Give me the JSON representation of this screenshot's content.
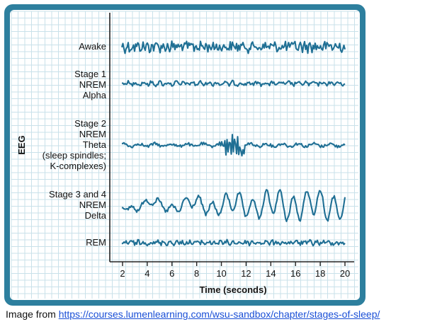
{
  "chart_data": {
    "type": "line",
    "title": "",
    "ylabel": "EEG",
    "xlabel": "Time (seconds)",
    "x_ticks": [
      2,
      4,
      6,
      8,
      10,
      12,
      14,
      16,
      18,
      20
    ],
    "xlim": [
      1.5,
      20.5
    ],
    "series": [
      {
        "name": "awake",
        "label_lines": [
          "Awake"
        ],
        "wave": "awake"
      },
      {
        "name": "stage1",
        "label_lines": [
          "Stage 1",
          "NREM",
          "Alpha"
        ],
        "wave": "alpha"
      },
      {
        "name": "stage2",
        "label_lines": [
          "Stage 2",
          "NREM",
          "Theta",
          "(sleep spindles;",
          "K-complexes)"
        ],
        "wave": "theta"
      },
      {
        "name": "stage34",
        "label_lines": [
          "Stage 3 and 4",
          "NREM",
          "Delta"
        ],
        "wave": "delta"
      },
      {
        "name": "rem",
        "label_lines": [
          "REM"
        ],
        "wave": "rem"
      }
    ]
  },
  "colors": {
    "frame": "#2d7f9e",
    "grid": "#c9e1ea",
    "panel": "#ffffff",
    "wave": "#1f6f94",
    "link": "#1a4fd6"
  },
  "caption": {
    "prefix": "Image from ",
    "link_text": "https://courses.lumenlearning.com/wsu-sandbox/chapter/stages-of-sleep/"
  }
}
